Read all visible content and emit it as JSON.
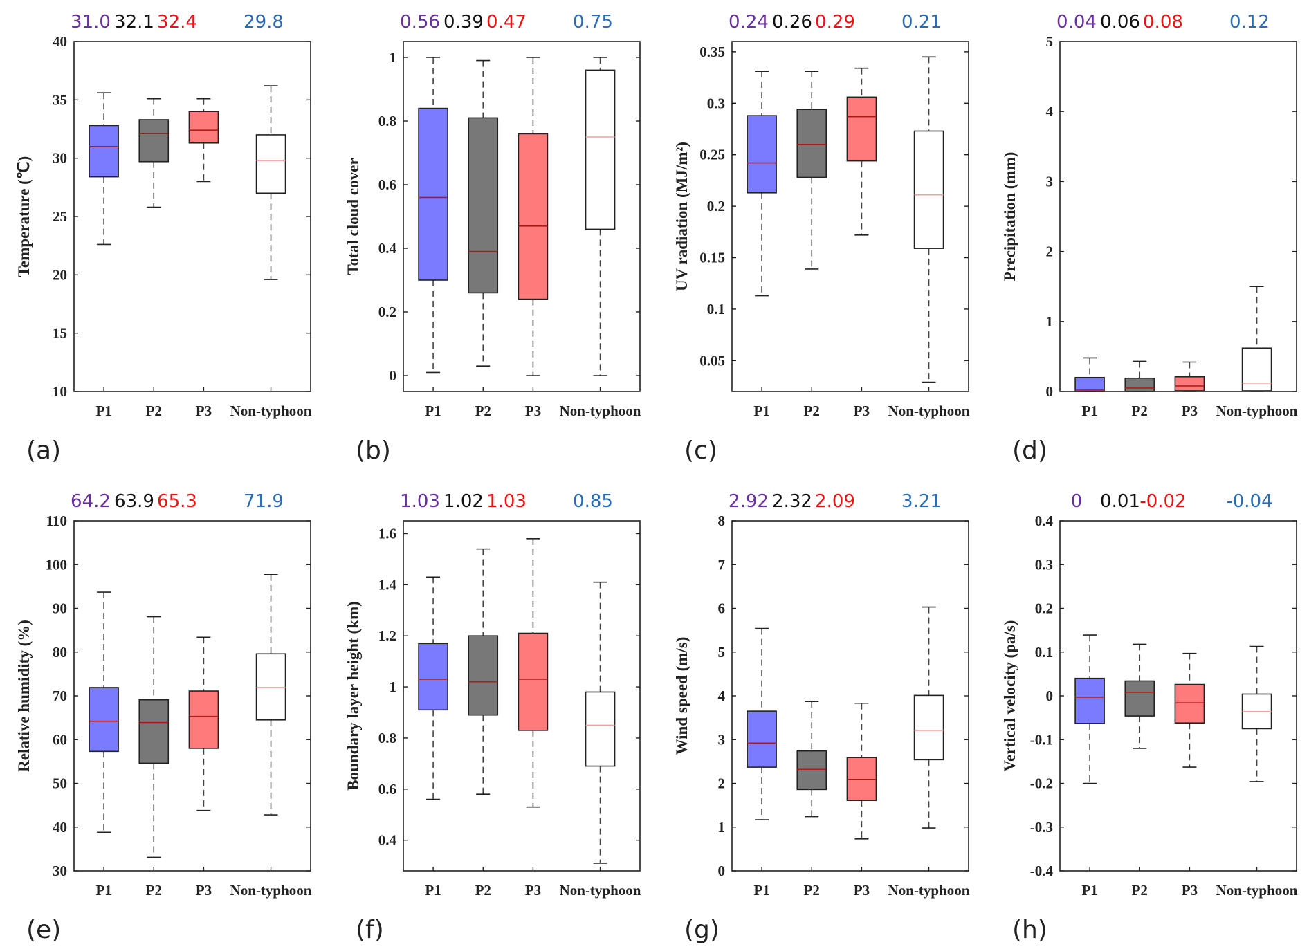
{
  "colors": {
    "P1": "#7b7bff",
    "P2": "#787878",
    "P3": "#ff7b7b",
    "Non-typhoon": "#ffffff",
    "mean_P1": "#6a2fa0",
    "mean_P2": "#111111",
    "mean_P3": "#ee1111",
    "mean_Non-typhoon": "#2a6db5",
    "median_color": "#b21a1a",
    "median_nontyphoon": "#f2a0a0"
  },
  "chart_data": [
    {
      "panel_label": "(a)",
      "type": "box",
      "ylabel": "Temperature (℃)",
      "categories": [
        "P1",
        "P2",
        "P3",
        "Non-typhoon"
      ],
      "ylim": [
        10,
        40
      ],
      "yticks": [
        "10",
        "15",
        "20",
        "25",
        "30",
        "35",
        "40"
      ],
      "ytick_values": [
        10,
        15,
        20,
        25,
        30,
        35,
        40
      ],
      "means": [
        "31.0",
        "32.1",
        "32.4",
        "29.8"
      ],
      "boxes": [
        {
          "min": 22.6,
          "q1": 28.4,
          "median": 31.0,
          "q3": 32.8,
          "max": 35.6
        },
        {
          "min": 25.8,
          "q1": 29.7,
          "median": 32.1,
          "q3": 33.3,
          "max": 35.1
        },
        {
          "min": 28.0,
          "q1": 31.3,
          "median": 32.4,
          "q3": 34.0,
          "max": 35.1
        },
        {
          "min": 19.6,
          "q1": 27.0,
          "median": 29.8,
          "q3": 32.0,
          "max": 36.2
        }
      ]
    },
    {
      "panel_label": "(b)",
      "type": "box",
      "ylabel": "Total cloud cover",
      "categories": [
        "P1",
        "P2",
        "P3",
        "Non-typhoon"
      ],
      "ylim": [
        -0.05,
        1.05
      ],
      "yticks": [
        "0",
        "0.2",
        "0.4",
        "0.6",
        "0.8",
        "1"
      ],
      "ytick_values": [
        0,
        0.2,
        0.4,
        0.6,
        0.8,
        1
      ],
      "means": [
        "0.56",
        "0.39",
        "0.47",
        "0.75"
      ],
      "boxes": [
        {
          "min": 0.01,
          "q1": 0.3,
          "median": 0.56,
          "q3": 0.84,
          "max": 1.0
        },
        {
          "min": 0.03,
          "q1": 0.26,
          "median": 0.39,
          "q3": 0.81,
          "max": 0.99
        },
        {
          "min": 0.0,
          "q1": 0.24,
          "median": 0.47,
          "q3": 0.76,
          "max": 1.0
        },
        {
          "min": 0.0,
          "q1": 0.46,
          "median": 0.75,
          "q3": 0.96,
          "max": 1.0
        }
      ]
    },
    {
      "panel_label": "(c)",
      "type": "box",
      "ylabel": "UV radiation (MJ/m²)",
      "categories": [
        "P1",
        "P2",
        "P3",
        "Non-typhoon"
      ],
      "ylim": [
        0.02,
        0.36
      ],
      "yticks": [
        "0.05",
        "0.1",
        "0.15",
        "0.2",
        "0.25",
        "0.3",
        "0.35"
      ],
      "ytick_values": [
        0.05,
        0.1,
        0.15,
        0.2,
        0.25,
        0.3,
        0.35
      ],
      "means": [
        "0.24",
        "0.26",
        "0.29",
        "0.21"
      ],
      "boxes": [
        {
          "min": 0.113,
          "q1": 0.213,
          "median": 0.242,
          "q3": 0.288,
          "max": 0.331
        },
        {
          "min": 0.139,
          "q1": 0.228,
          "median": 0.26,
          "q3": 0.294,
          "max": 0.331
        },
        {
          "min": 0.172,
          "q1": 0.244,
          "median": 0.287,
          "q3": 0.306,
          "max": 0.334
        },
        {
          "min": 0.029,
          "q1": 0.159,
          "median": 0.211,
          "q3": 0.273,
          "max": 0.345
        }
      ]
    },
    {
      "panel_label": "(d)",
      "type": "box",
      "ylabel": "Precipitation (mm)",
      "categories": [
        "P1",
        "P2",
        "P3",
        "Non-typhoon"
      ],
      "ylim": [
        0,
        5
      ],
      "yticks": [
        "0",
        "1",
        "2",
        "3",
        "4",
        "5"
      ],
      "ytick_values": [
        0,
        1,
        2,
        3,
        4,
        5
      ],
      "means": [
        "0.04",
        "0.06",
        "0.08",
        "0.12"
      ],
      "boxes": [
        {
          "min": 0.0,
          "q1": 0.0,
          "median": 0.02,
          "q3": 0.2,
          "max": 0.48
        },
        {
          "min": 0.0,
          "q1": 0.0,
          "median": 0.05,
          "q3": 0.19,
          "max": 0.43
        },
        {
          "min": 0.0,
          "q1": 0.01,
          "median": 0.08,
          "q3": 0.21,
          "max": 0.42
        },
        {
          "min": 0.0,
          "q1": 0.01,
          "median": 0.12,
          "q3": 0.62,
          "max": 1.5
        }
      ]
    },
    {
      "panel_label": "(e)",
      "type": "box",
      "ylabel": "Relative humidity (%)",
      "categories": [
        "P1",
        "P2",
        "P3",
        "Non-typhoon"
      ],
      "ylim": [
        30,
        110
      ],
      "yticks": [
        "30",
        "40",
        "50",
        "60",
        "70",
        "80",
        "90",
        "100",
        "110"
      ],
      "ytick_values": [
        30,
        40,
        50,
        60,
        70,
        80,
        90,
        100,
        110
      ],
      "means": [
        "64.2",
        "63.9",
        "65.3",
        "71.9"
      ],
      "boxes": [
        {
          "min": 38.8,
          "q1": 57.3,
          "median": 64.2,
          "q3": 71.9,
          "max": 93.7
        },
        {
          "min": 33.1,
          "q1": 54.6,
          "median": 63.9,
          "q3": 69.1,
          "max": 88.1
        },
        {
          "min": 43.8,
          "q1": 58.0,
          "median": 65.3,
          "q3": 71.1,
          "max": 83.4
        },
        {
          "min": 42.8,
          "q1": 64.5,
          "median": 71.9,
          "q3": 79.6,
          "max": 97.7
        }
      ]
    },
    {
      "panel_label": "(f)",
      "type": "box",
      "ylabel": "Boundary layer height (km)",
      "categories": [
        "P1",
        "P2",
        "P3",
        "Non-typhoon"
      ],
      "ylim": [
        0.28,
        1.65
      ],
      "yticks": [
        "0.4",
        "0.6",
        "0.8",
        "1",
        "1.2",
        "1.4",
        "1.6"
      ],
      "ytick_values": [
        0.4,
        0.6,
        0.8,
        1.0,
        1.2,
        1.4,
        1.6
      ],
      "means": [
        "1.03",
        "1.02",
        "1.03",
        "0.85"
      ],
      "boxes": [
        {
          "min": 0.56,
          "q1": 0.91,
          "median": 1.03,
          "q3": 1.17,
          "max": 1.43
        },
        {
          "min": 0.58,
          "q1": 0.89,
          "median": 1.02,
          "q3": 1.2,
          "max": 1.54
        },
        {
          "min": 0.53,
          "q1": 0.83,
          "median": 1.03,
          "q3": 1.21,
          "max": 1.58
        },
        {
          "min": 0.31,
          "q1": 0.69,
          "median": 0.85,
          "q3": 0.98,
          "max": 1.41
        }
      ]
    },
    {
      "panel_label": "(g)",
      "type": "box",
      "ylabel": "Wind speed (m/s)",
      "categories": [
        "P1",
        "P2",
        "P3",
        "Non-typhoon"
      ],
      "ylim": [
        0,
        8
      ],
      "yticks": [
        "0",
        "1",
        "2",
        "3",
        "4",
        "5",
        "6",
        "7",
        "8"
      ],
      "ytick_values": [
        0,
        1,
        2,
        3,
        4,
        5,
        6,
        7,
        8
      ],
      "means": [
        "2.92",
        "2.32",
        "2.09",
        "3.21"
      ],
      "boxes": [
        {
          "min": 1.17,
          "q1": 2.37,
          "median": 2.92,
          "q3": 3.65,
          "max": 5.54
        },
        {
          "min": 1.24,
          "q1": 1.86,
          "median": 2.32,
          "q3": 2.74,
          "max": 3.87
        },
        {
          "min": 0.73,
          "q1": 1.61,
          "median": 2.09,
          "q3": 2.59,
          "max": 3.83
        },
        {
          "min": 0.98,
          "q1": 2.54,
          "median": 3.21,
          "q3": 4.01,
          "max": 6.03
        }
      ]
    },
    {
      "panel_label": "(h)",
      "type": "box",
      "ylabel": "Vertical velocity (pa/s)",
      "categories": [
        "P1",
        "P2",
        "P3",
        "Non-typhoon"
      ],
      "ylim": [
        -0.4,
        0.4
      ],
      "yticks": [
        "-0.4",
        "-0.3",
        "-0.2",
        "-0.1",
        "0",
        "0.1",
        "0.2",
        "0.3",
        "0.4"
      ],
      "ytick_values": [
        -0.4,
        -0.3,
        -0.2,
        -0.1,
        0,
        0.1,
        0.2,
        0.3,
        0.4
      ],
      "means": [
        "0",
        "0.01",
        "-0.02",
        "-0.04"
      ],
      "boxes": [
        {
          "min": -0.2,
          "q1": -0.063,
          "median": -0.003,
          "q3": 0.04,
          "max": 0.139
        },
        {
          "min": -0.12,
          "q1": -0.046,
          "median": 0.008,
          "q3": 0.034,
          "max": 0.118
        },
        {
          "min": -0.163,
          "q1": -0.062,
          "median": -0.016,
          "q3": 0.026,
          "max": 0.097
        },
        {
          "min": -0.196,
          "q1": -0.075,
          "median": -0.036,
          "q3": 0.004,
          "max": 0.113
        }
      ]
    }
  ]
}
